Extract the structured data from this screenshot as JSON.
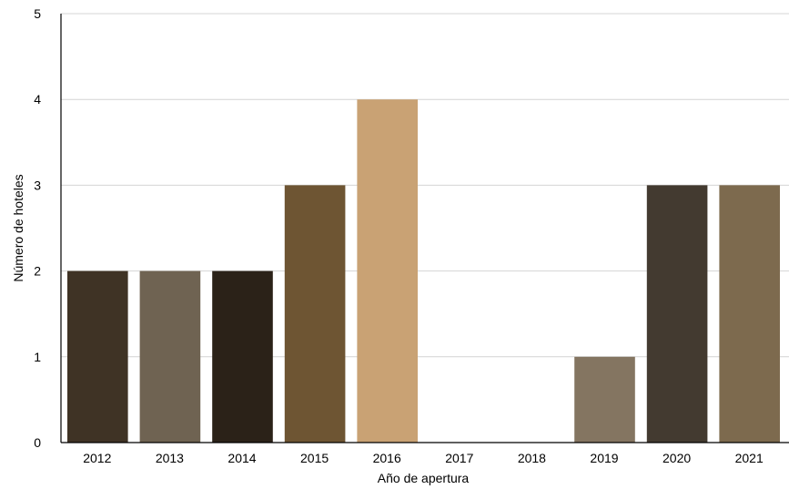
{
  "chart_data": {
    "type": "bar",
    "title": "",
    "xlabel": "Año de apertura",
    "ylabel": "Número de hoteles",
    "categories": [
      "2012",
      "2013",
      "2014",
      "2015",
      "2016",
      "2017",
      "2018",
      "2019",
      "2020",
      "2021"
    ],
    "values": [
      2,
      2,
      2,
      3,
      4,
      0,
      0,
      1,
      3,
      3
    ],
    "ylim": [
      0,
      5
    ],
    "yticks": [
      "0",
      "1",
      "2",
      "3",
      "4",
      "5"
    ],
    "grid": "horizontal",
    "bar_colors": [
      "#3f3325",
      "#6f6352",
      "#2b2218",
      "#6e5533",
      "#c9a274",
      "#8a7a62",
      "#8a7a62",
      "#847561",
      "#433a30",
      "#7d6a4e"
    ]
  }
}
